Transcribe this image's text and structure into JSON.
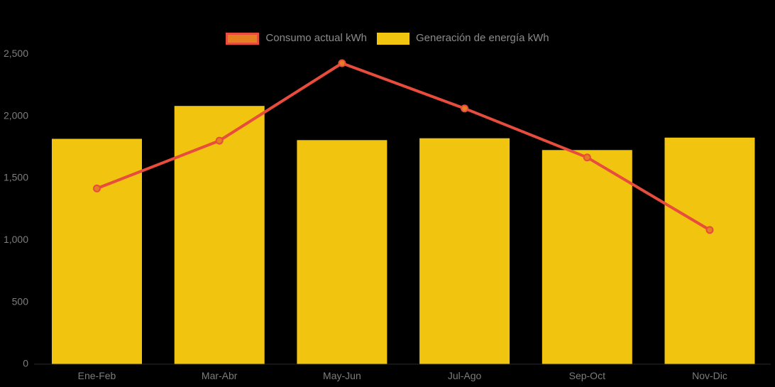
{
  "chart_data": {
    "type": "combo-bar-line",
    "title": "",
    "categories": [
      "Ene-Feb",
      "Mar-Abr",
      "May-Jun",
      "Jul-Ago",
      "Sep-Oct",
      "Nov-Dic"
    ],
    "series": [
      {
        "name": "Consumo actual kWh",
        "type": "line",
        "values": [
          1410,
          1795,
          2420,
          2055,
          1660,
          1075
        ],
        "color": "#e74c3c",
        "marker_color": "#e67e22"
      },
      {
        "name": "Generación de energía kWh",
        "type": "bar",
        "values": [
          1810,
          2075,
          1800,
          1815,
          1720,
          1820
        ],
        "color": "#f1c40f"
      }
    ],
    "xlabel": "",
    "ylabel": "",
    "ylim": [
      0,
      2500
    ],
    "y_ticks": [
      {
        "value": 0,
        "label": "0"
      },
      {
        "value": 500,
        "label": "500"
      },
      {
        "value": 1000,
        "label": "1,000"
      },
      {
        "value": 1500,
        "label": "1,500"
      },
      {
        "value": 2000,
        "label": "2,000"
      },
      {
        "value": 2500,
        "label": "2,500"
      }
    ],
    "grid": false,
    "legend_position": "top",
    "background": "#000000",
    "axis_text_color": "#7d7d7d"
  }
}
